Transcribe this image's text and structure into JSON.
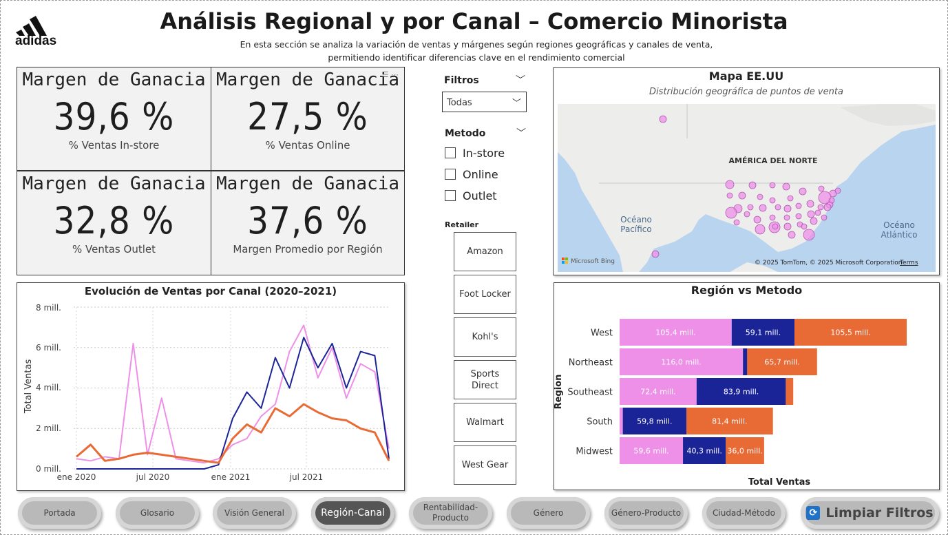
{
  "brand": {
    "name": "adidas"
  },
  "header": {
    "title": "Análisis Regional y por Canal – Comercio Minorista",
    "subtitle_line1": "En esta sección se analiza la variación de ventas y márgenes según regiones geográficas y canales de venta,",
    "subtitle_line2": "permitiendo identificar diferencias clave en el rendimiento comercial"
  },
  "kpis": [
    {
      "heading": "Margen de Ganacia",
      "value": "39,6 %",
      "caption": "% Ventas In-store"
    },
    {
      "heading": "Margen de Ganacia",
      "value": "27,5 %",
      "caption": "% Ventas Online"
    },
    {
      "heading": "Margen de Ganacia",
      "value": "32,8 %",
      "caption": "% Ventas Outlet"
    },
    {
      "heading": "Margen de Ganacia",
      "value": "37,6 %",
      "caption": "Margen Promedio por Región"
    }
  ],
  "filters": {
    "heading": "Filtros",
    "dropdown_value": "Todas",
    "method_heading": "Metodo",
    "methods": [
      "In-store",
      "Online",
      "Outlet"
    ],
    "retailer_heading": "Retailer",
    "retailers": [
      "Amazon",
      "Foot Locker",
      "Kohl's",
      "Sports Direct",
      "Walmart",
      "West Gear"
    ]
  },
  "map": {
    "title": "Mapa EE.UU",
    "subtitle": "Distribución geográfica de puntos de venta",
    "label_continent": "AMÉRICA DEL NORTE",
    "label_pacific_1": "Océano",
    "label_pacific_2": "Pacífico",
    "label_atlantic_1": "Océano",
    "label_atlantic_2": "Atlántico",
    "attribution": "© 2025 TomTom, © 2025 Microsoft Corporation",
    "terms": "Terms",
    "bing": "Microsoft Bing",
    "land_color": "#ededeb",
    "water_color": "#b9d4ef",
    "bubble_color": "#ee90e8"
  },
  "line_chart": {
    "title": "Evolución de Ventas por Canal (2020–2021)",
    "ylabel": "Total Ventas",
    "yticks": [
      "8 mill.",
      "6 mill.",
      "4 mill.",
      "2 mill.",
      "0 mill."
    ],
    "xticks": [
      "ene 2020",
      "jul 2020",
      "ene 2021",
      "jul 2021"
    ]
  },
  "chart_data": [
    {
      "type": "line",
      "title": "Evolución de Ventas por Canal (2020–2021)",
      "ylabel": "Total Ventas",
      "ylim": [
        0,
        8000000
      ],
      "x_ticks": [
        "ene 2020",
        "jul 2020",
        "ene 2021",
        "jul 2021"
      ],
      "series": [
        {
          "color": "#ee90e8",
          "values": [
            500000,
            400000,
            600000,
            500000,
            6200000,
            700000,
            3500000,
            500000,
            400000,
            300000,
            500000,
            1200000,
            1500000,
            2600000,
            3200000,
            5800000,
            7100000,
            4500000,
            6000000,
            3500000,
            5200000,
            4800000,
            1000000
          ]
        },
        {
          "color": "#1b2496",
          "values": [
            0,
            0,
            0,
            0,
            0,
            0,
            0,
            0,
            0,
            0,
            200000,
            2500000,
            3800000,
            3000000,
            5500000,
            4000000,
            6500000,
            5000000,
            6200000,
            4000000,
            5800000,
            5600000,
            500000
          ]
        },
        {
          "color": "#e86a35",
          "values": [
            600000,
            1200000,
            400000,
            500000,
            700000,
            800000,
            700000,
            600000,
            500000,
            400000,
            300000,
            1500000,
            2200000,
            1800000,
            3000000,
            2600000,
            3200000,
            2800000,
            2500000,
            2400000,
            2000000,
            1800000,
            400000
          ]
        }
      ]
    },
    {
      "type": "bar",
      "orientation": "horizontal",
      "stacked": true,
      "title": "Región vs Metodo",
      "xlabel": "Total Ventas",
      "ylabel": "Region",
      "categories": [
        "West",
        "Northeast",
        "Southeast",
        "South",
        "Midwest"
      ],
      "series": [
        {
          "color": "#ee90e8",
          "values": [
            105.4,
            116.0,
            72.4,
            3.0,
            59.6
          ],
          "labels": [
            "105,4 mill.",
            "116,0 mill.",
            "72,4 mill.",
            "",
            "59,6 mill."
          ]
        },
        {
          "color": "#1b2496",
          "values": [
            59.1,
            4.0,
            83.9,
            59.8,
            40.3
          ],
          "labels": [
            "59,1 mill.",
            "",
            "83,9 mill.",
            "59,8 mill.",
            "40,3 mill."
          ]
        },
        {
          "color": "#e86a35",
          "values": [
            105.5,
            65.7,
            7.0,
            81.4,
            36.0
          ],
          "labels": [
            "105,5 mill.",
            "65,7 mill.",
            "",
            "81,4 mill.",
            "36,0 mill."
          ]
        }
      ]
    }
  ],
  "nav": {
    "items": [
      "Portada",
      "Glosario",
      "Visión General",
      "Región-Canal",
      "Rentabilidad-\nProducto",
      "Género",
      "Género-Producto",
      "Ciudad-Método"
    ],
    "active": "Región-Canal",
    "clear_label": "Limpiar Filtros"
  }
}
